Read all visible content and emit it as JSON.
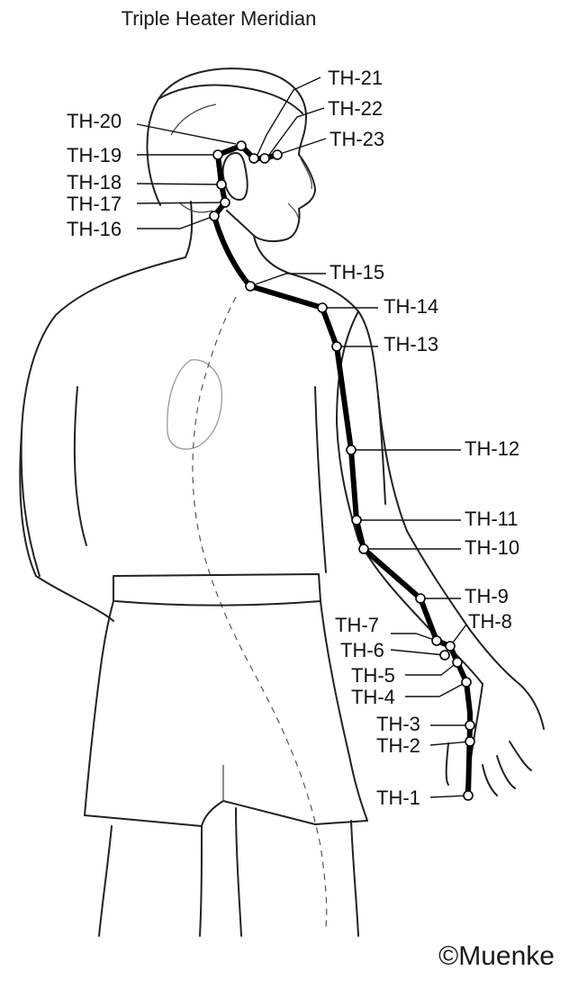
{
  "title": "Triple Heater Meridian",
  "credit": "©Muenke",
  "points": [
    {
      "id": "TH-1",
      "label": "TH-1"
    },
    {
      "id": "TH-2",
      "label": "TH-2"
    },
    {
      "id": "TH-3",
      "label": "TH-3"
    },
    {
      "id": "TH-4",
      "label": "TH-4"
    },
    {
      "id": "TH-5",
      "label": "TH-5"
    },
    {
      "id": "TH-6",
      "label": "TH-6"
    },
    {
      "id": "TH-7",
      "label": "TH-7"
    },
    {
      "id": "TH-8",
      "label": "TH-8"
    },
    {
      "id": "TH-9",
      "label": "TH-9"
    },
    {
      "id": "TH-10",
      "label": "TH-10"
    },
    {
      "id": "TH-11",
      "label": "TH-11"
    },
    {
      "id": "TH-12",
      "label": "TH-12"
    },
    {
      "id": "TH-13",
      "label": "TH-13"
    },
    {
      "id": "TH-14",
      "label": "TH-14"
    },
    {
      "id": "TH-15",
      "label": "TH-15"
    },
    {
      "id": "TH-16",
      "label": "TH-16"
    },
    {
      "id": "TH-17",
      "label": "TH-17"
    },
    {
      "id": "TH-18",
      "label": "TH-18"
    },
    {
      "id": "TH-19",
      "label": "TH-19"
    },
    {
      "id": "TH-20",
      "label": "TH-20"
    },
    {
      "id": "TH-21",
      "label": "TH-21"
    },
    {
      "id": "TH-22",
      "label": "TH-22"
    },
    {
      "id": "TH-23",
      "label": "TH-23"
    }
  ]
}
